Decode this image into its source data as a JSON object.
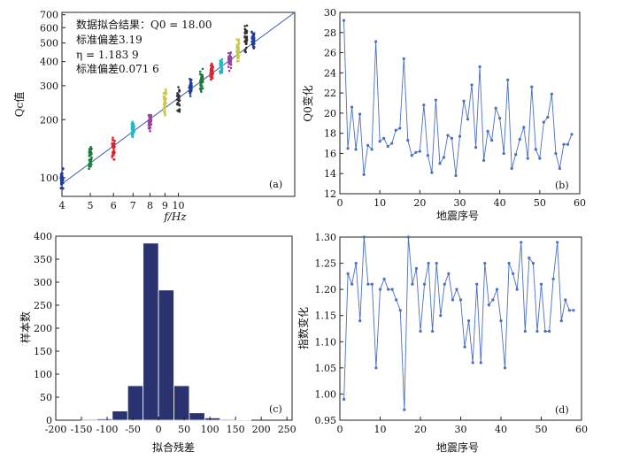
{
  "chart_data": [
    {
      "panel": "(a)",
      "type": "scatter",
      "xlabel": "f/Hz",
      "ylabel": "Qc值",
      "xscale": "log",
      "yscale": "log",
      "xlim": [
        4,
        25
      ],
      "ylim": [
        80,
        720
      ],
      "xticks": [
        4,
        5,
        6,
        7,
        8,
        9,
        10
      ],
      "yticks": [
        100,
        200,
        300,
        400,
        500,
        600,
        700
      ],
      "annotations": [
        "数据拟合结果：",
        "Q0 = 18.00",
        "标准偏差3.19",
        "η = 1.183 9",
        "标准偏差0.071 6"
      ],
      "fit_line": {
        "Q0": 18.0,
        "eta": 1.1839,
        "color": "#3b5ba9"
      },
      "clusters": [
        {
          "x": 4,
          "ymin": 82,
          "ymax": 115,
          "color": "#1f3f9a"
        },
        {
          "x": 5,
          "ymin": 108,
          "ymax": 150,
          "color": "#1b7a3a"
        },
        {
          "x": 6,
          "ymin": 122,
          "ymax": 165,
          "color": "#e0202a"
        },
        {
          "x": 7,
          "ymin": 152,
          "ymax": 205,
          "color": "#22b8c8"
        },
        {
          "x": 8,
          "ymin": 170,
          "ymax": 225,
          "color": "#9b3fa0"
        },
        {
          "x": 9,
          "ymin": 205,
          "ymax": 305,
          "color": "#c8c84a"
        },
        {
          "x": 10,
          "ymin": 205,
          "ymax": 310,
          "color": "#333333"
        },
        {
          "x": 11,
          "ymin": 245,
          "ymax": 345,
          "color": "#1f3f9a"
        },
        {
          "x": 12,
          "ymin": 270,
          "ymax": 380,
          "color": "#1b7a3a"
        },
        {
          "x": 13,
          "ymin": 300,
          "ymax": 420,
          "color": "#e0202a"
        },
        {
          "x": 14,
          "ymin": 320,
          "ymax": 440,
          "color": "#22b8c8"
        },
        {
          "x": 15,
          "ymin": 350,
          "ymax": 470,
          "color": "#9b3fa0"
        },
        {
          "x": 16,
          "ymin": 380,
          "ymax": 560,
          "color": "#c8c84a"
        },
        {
          "x": 17,
          "ymin": 420,
          "ymax": 700,
          "color": "#333333"
        },
        {
          "x": 18,
          "ymin": 440,
          "ymax": 600,
          "color": "#1f3f9a"
        }
      ]
    },
    {
      "panel": "(b)",
      "type": "line",
      "xlabel": "地震序号",
      "ylabel": "Q0变化",
      "xlim": [
        0,
        60
      ],
      "ylim": [
        12,
        30
      ],
      "xticks": [
        0,
        10,
        20,
        30,
        40,
        50,
        60
      ],
      "yticks": [
        12,
        14,
        16,
        18,
        20,
        22,
        24,
        26,
        28,
        30
      ],
      "color": "#4a6fc0",
      "x": [
        1,
        2,
        3,
        4,
        5,
        6,
        7,
        8,
        9,
        10,
        11,
        12,
        13,
        14,
        15,
        16,
        17,
        18,
        19,
        20,
        21,
        22,
        23,
        24,
        25,
        26,
        27,
        28,
        29,
        30,
        31,
        32,
        33,
        34,
        35,
        36,
        37,
        38,
        39,
        40,
        41,
        42,
        43,
        44,
        45,
        46,
        47,
        48,
        49,
        50,
        51,
        52,
        53,
        54,
        55,
        56,
        57,
        58
      ],
      "values": [
        29.2,
        16.5,
        20.6,
        16.4,
        19.9,
        13.9,
        16.8,
        16.4,
        27.1,
        17.2,
        17.5,
        16.7,
        17.0,
        18.3,
        18.5,
        25.4,
        17.3,
        15.8,
        16.1,
        16.2,
        20.8,
        15.8,
        14.1,
        21.3,
        15.0,
        15.6,
        17.8,
        17.5,
        13.8,
        17.7,
        21.2,
        19.4,
        22.8,
        16.6,
        24.6,
        15.3,
        18.2,
        17.3,
        20.5,
        19.5,
        16.0,
        23.3,
        14.5,
        15.9,
        17.4,
        18.6,
        15.5,
        22.6,
        16.4,
        15.5,
        19.1,
        19.6,
        21.9,
        16.0,
        14.5,
        16.9,
        16.9,
        17.9
      ]
    },
    {
      "panel": "(c)",
      "type": "bar",
      "xlabel": "拟合残差",
      "ylabel": "样本数",
      "xlim": [
        -200,
        260
      ],
      "ylim": [
        0,
        400
      ],
      "xticks": [
        -200,
        -150,
        -100,
        -50,
        0,
        50,
        100,
        150,
        200,
        250
      ],
      "yticks": [
        0,
        50,
        100,
        150,
        200,
        250,
        300,
        350,
        400
      ],
      "color": "#2a3270",
      "bin_width": 30,
      "bin_starts": [
        -150,
        -120,
        -90,
        -60,
        -30,
        0,
        30,
        60,
        90,
        120,
        150
      ],
      "values": [
        2,
        3,
        20,
        75,
        385,
        283,
        75,
        16,
        5,
        2,
        1
      ]
    },
    {
      "panel": "(d)",
      "type": "line",
      "xlabel": "地震序号",
      "ylabel": "指数变化",
      "xlim": [
        0,
        60
      ],
      "ylim": [
        0.95,
        1.3
      ],
      "xticks": [
        0,
        10,
        20,
        30,
        40,
        50,
        60
      ],
      "yticks": [
        0.95,
        1.0,
        1.05,
        1.1,
        1.15,
        1.2,
        1.25,
        1.3
      ],
      "color": "#4a6fc0",
      "x": [
        1,
        2,
        3,
        4,
        5,
        6,
        7,
        8,
        9,
        10,
        11,
        12,
        13,
        14,
        15,
        16,
        17,
        18,
        19,
        20,
        21,
        22,
        23,
        24,
        25,
        26,
        27,
        28,
        29,
        30,
        31,
        32,
        33,
        34,
        35,
        36,
        37,
        38,
        39,
        40,
        41,
        42,
        43,
        44,
        45,
        46,
        47,
        48,
        49,
        50,
        51,
        52,
        53,
        54,
        55,
        56,
        57,
        58
      ],
      "values": [
        0.99,
        1.23,
        1.21,
        1.25,
        1.14,
        1.3,
        1.21,
        1.21,
        1.05,
        1.2,
        1.22,
        1.2,
        1.2,
        1.18,
        1.16,
        0.97,
        1.3,
        1.21,
        1.24,
        1.12,
        1.21,
        1.25,
        1.12,
        1.25,
        1.15,
        1.21,
        1.23,
        1.18,
        1.2,
        1.18,
        1.09,
        1.14,
        1.06,
        1.21,
        1.06,
        1.25,
        1.17,
        1.18,
        1.2,
        1.14,
        1.05,
        1.25,
        1.23,
        1.2,
        1.29,
        1.12,
        1.26,
        1.25,
        1.12,
        1.21,
        1.12,
        1.12,
        1.22,
        1.29,
        1.14,
        1.18,
        1.16,
        1.16
      ]
    }
  ]
}
